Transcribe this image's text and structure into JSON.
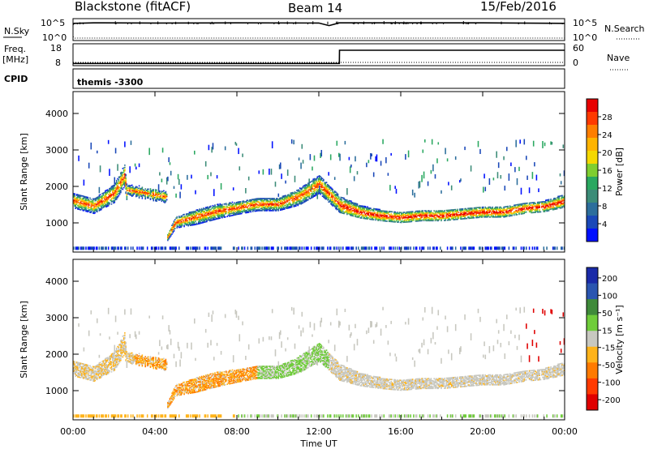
{
  "header": {
    "station": "Blackstone (fitACF)",
    "beam": "Beam 14",
    "date": "15/Feb/2016"
  },
  "top_panels": {
    "nsky_label": "N.Sky",
    "nsearch_label": "N.Search",
    "freq_label_1": "Freq.",
    "freq_label_2": "[MHz]",
    "nave_label": "Nave",
    "cpid_label": "CPID",
    "cpid_value": "themis -3300",
    "nsky_ticks": [
      "10^5",
      "10^0"
    ],
    "nsearch_ticks": [
      "10^5",
      "10^0"
    ],
    "freq_ticks": [
      "18",
      "8"
    ],
    "nave_ticks": [
      "60",
      "0"
    ]
  },
  "power_colorbar": {
    "title": "Power [dB]",
    "ticks": [
      "28",
      "24",
      "20",
      "16",
      "12",
      "8",
      "4"
    ],
    "colors": [
      "#e80000",
      "#ff3a00",
      "#ff7e00",
      "#ffb400",
      "#f5d800",
      "#7fce30",
      "#2aa860",
      "#3c8c78",
      "#2c6e9c",
      "#1a48b8",
      "#0010ff"
    ]
  },
  "velocity_colorbar": {
    "title": "Velocity [m s⁻¹]",
    "ticks": [
      "200",
      "100",
      "50",
      "15",
      "-15",
      "-50",
      "-100",
      "-200"
    ],
    "colors": [
      "#1a2aa8",
      "#2a55b0",
      "#3f8a3a",
      "#6fcc3a",
      "#c8c8c0",
      "#ffb31a",
      "#ff7a00",
      "#ff3a00",
      "#e00000"
    ]
  },
  "x_axis": {
    "label": "Time UT",
    "ticks": [
      "00:00",
      "04:00",
      "08:00",
      "12:00",
      "16:00",
      "20:00",
      "00:00"
    ]
  },
  "chart_data": [
    {
      "type": "heatmap",
      "title": "Power",
      "ylabel": "Slant Range [km]",
      "xlabel": "",
      "xlim": [
        0,
        24
      ],
      "ylim": [
        200,
        4600
      ],
      "yticks": [
        1000,
        2000,
        3000,
        4000
      ],
      "grid": false,
      "bands": [
        {
          "name": "main",
          "x": [
            0,
            1,
            2,
            2.5,
            3,
            4,
            5,
            6,
            7,
            8,
            9,
            10,
            11,
            12,
            13,
            14,
            15,
            16,
            17,
            18,
            19,
            20,
            21,
            22,
            23,
            24
          ],
          "y": [
            1600,
            1450,
            1800,
            2300,
            0,
            0,
            1000,
            1150,
            1300,
            1400,
            1500,
            1500,
            1700,
            2050,
            1500,
            1300,
            1200,
            1150,
            1200,
            1200,
            1250,
            1300,
            1300,
            1400,
            1450,
            1600
          ],
          "width": [
            400,
            400,
            500,
            600,
            0,
            0,
            300,
            400,
            400,
            350,
            350,
            350,
            450,
            500,
            450,
            350,
            300,
            300,
            300,
            300,
            300,
            300,
            300,
            300,
            300,
            350
          ]
        }
      ],
      "range_near": 300
    },
    {
      "type": "heatmap",
      "title": "Velocity",
      "ylabel": "Slant Range [km]",
      "xlabel": "Time UT",
      "xlim": [
        0,
        24
      ],
      "ylim": [
        200,
        4600
      ],
      "yticks": [
        1000,
        2000,
        3000,
        4000
      ],
      "grid": false
    },
    {
      "type": "line",
      "title": "N.Sky",
      "x": [
        0,
        0.05,
        1,
        4,
        8,
        12,
        12.5,
        13,
        16,
        20,
        24
      ],
      "y": [
        0.85,
        0.92,
        0.95,
        0.94,
        0.95,
        0.94,
        0.8,
        0.95,
        0.95,
        0.95,
        0.92
      ]
    },
    {
      "type": "line",
      "title": "Freq",
      "x": [
        0,
        13,
        13.01,
        24
      ],
      "y": [
        10.5,
        10.5,
        16.5,
        16.5
      ]
    }
  ]
}
